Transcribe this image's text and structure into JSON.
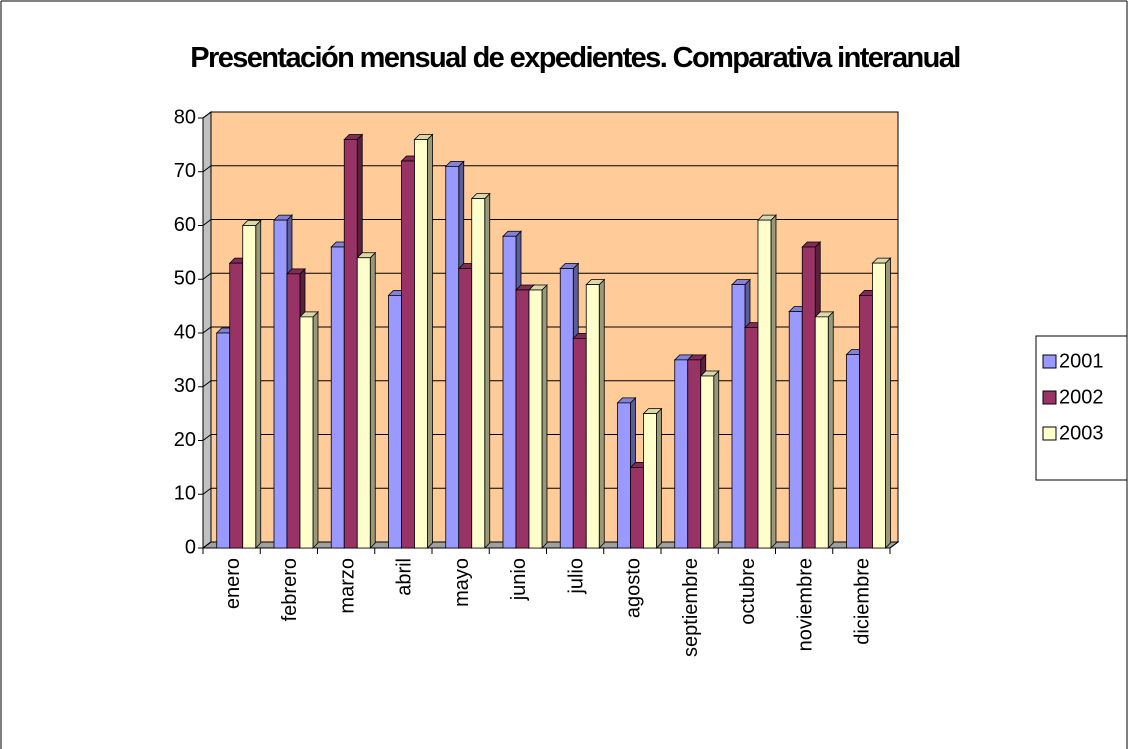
{
  "chart_data": {
    "type": "bar3d",
    "title": "Presentación mensual de expedientes. Comparativa interanual",
    "categories": [
      "enero",
      "febrero",
      "marzo",
      "abril",
      "mayo",
      "junio",
      "julio",
      "agosto",
      "septiembre",
      "octubre",
      "noviembre",
      "diciembre"
    ],
    "series": [
      {
        "name": "2001",
        "color": "#9999ff",
        "values": [
          40,
          61,
          56,
          47,
          71,
          58,
          52,
          27,
          35,
          49,
          44,
          36
        ]
      },
      {
        "name": "2002",
        "color": "#993366",
        "values": [
          53,
          51,
          76,
          72,
          52,
          48,
          39,
          15,
          35,
          41,
          56,
          47
        ]
      },
      {
        "name": "2003",
        "color": "#ffffcc",
        "values": [
          60,
          43,
          54,
          76,
          65,
          48,
          49,
          25,
          32,
          61,
          43,
          53
        ]
      }
    ],
    "ylim": [
      0,
      80
    ],
    "yticks": [
      0,
      10,
      20,
      30,
      40,
      50,
      60,
      70,
      80
    ],
    "grid": true,
    "wall_color": "#ffcc99",
    "legend": "right"
  }
}
